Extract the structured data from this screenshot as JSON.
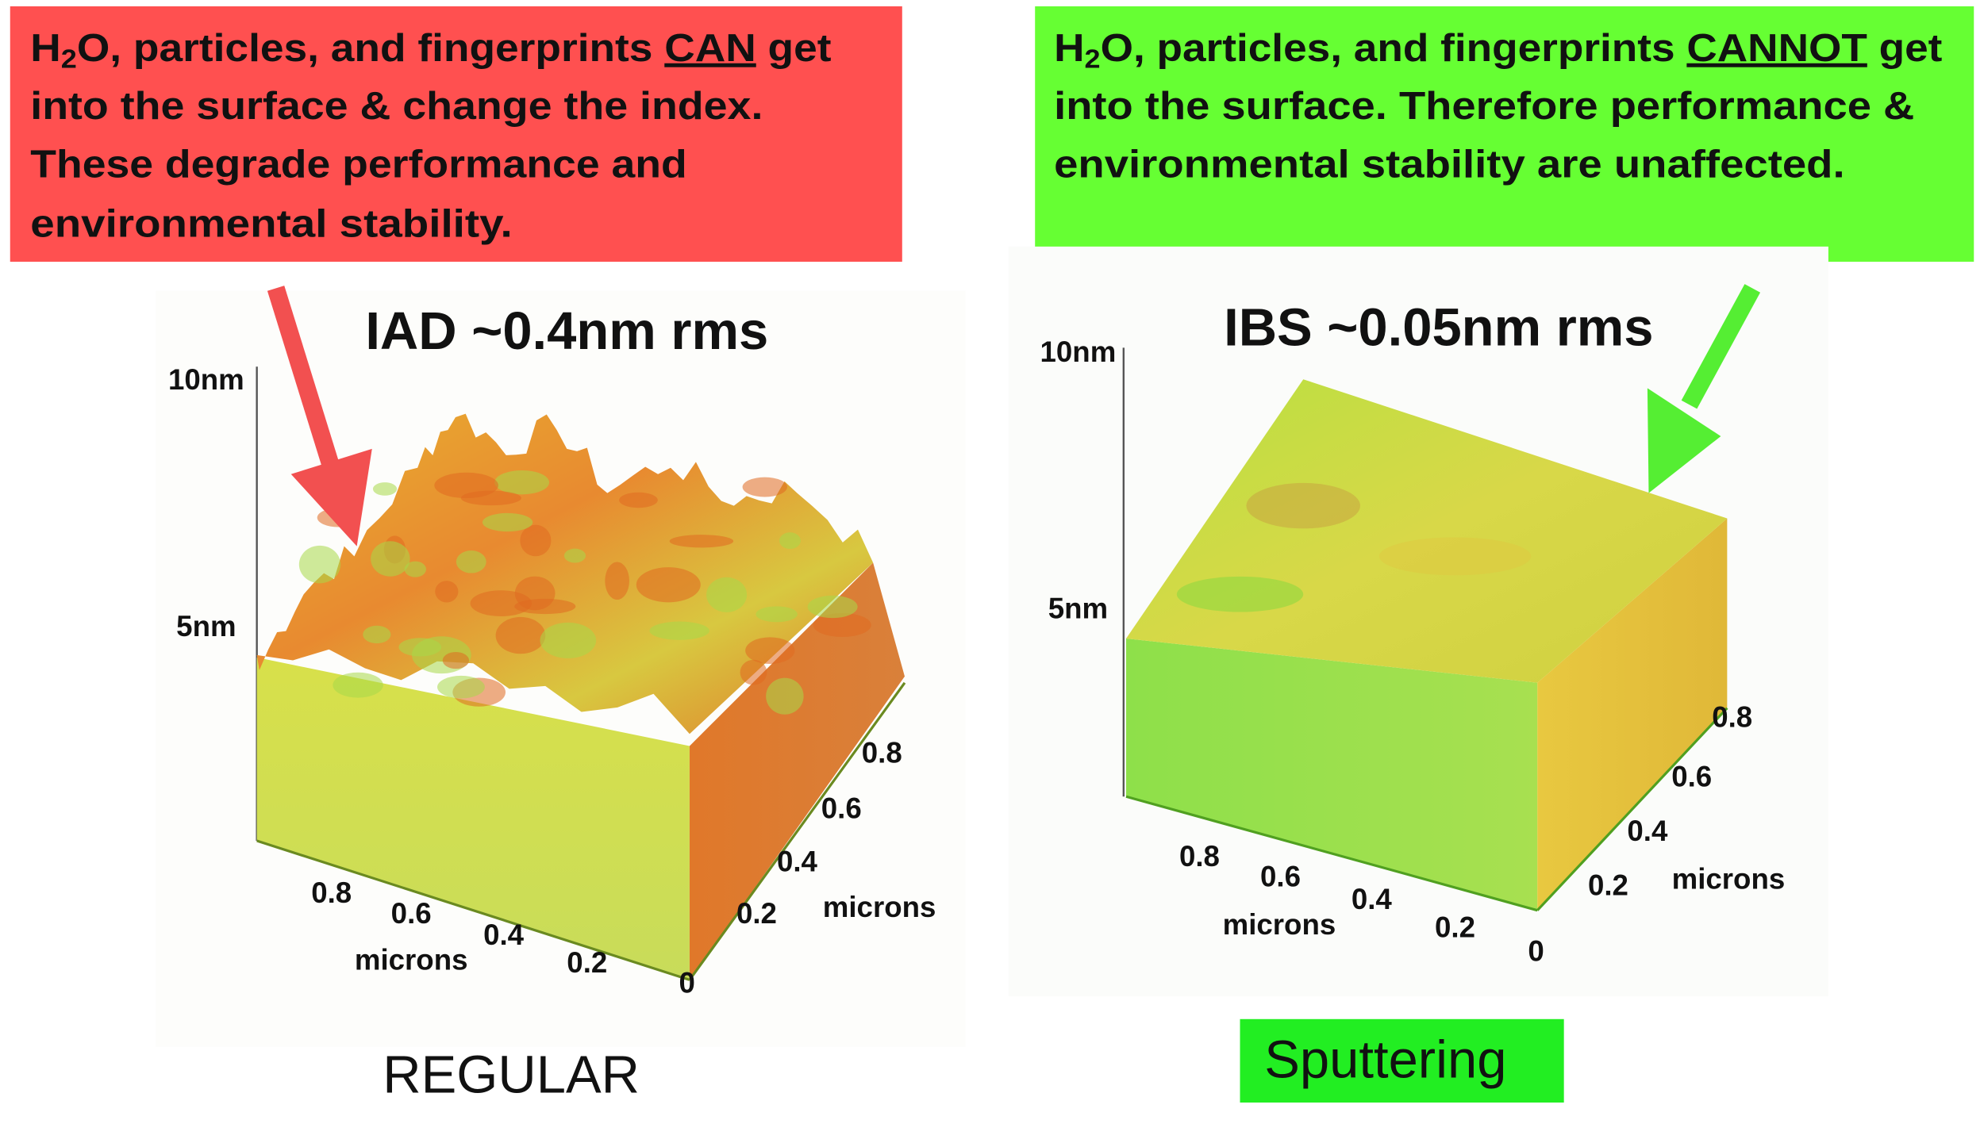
{
  "panels": [
    {
      "note": {
        "first_line": [
          "H",
          "2",
          "O, particles, and fingerprints ",
          "CAN",
          " get"
        ],
        "lines": [
          "into the surface & change the index.",
          "These degrade performance and",
          "environmental stability."
        ]
      },
      "title": "IAD ~0.4nm rms",
      "z_labels": [
        "10nm",
        "5nm"
      ],
      "front_ticks": [
        "0.8",
        "0.6",
        "0.4",
        "0.2"
      ],
      "front_axis_label": "microns",
      "origin_label": "0",
      "side_ticks": [
        "0.2",
        "0.4",
        "0.6",
        "0.8"
      ],
      "side_axis_label": "microns",
      "caption": "REGULAR"
    },
    {
      "note": {
        "first_line": [
          "H",
          "2",
          "O, particles, and fingerprints ",
          "CANNOT",
          " get"
        ],
        "lines": [
          "into the surface. Therefore performance &",
          "environmental stability are unaffected."
        ]
      },
      "title": "IBS ~0.05nm rms",
      "z_labels": [
        "10nm",
        "5nm"
      ],
      "front_ticks": [
        "0.8",
        "0.6",
        "0.4",
        "0.2"
      ],
      "front_axis_label": "microns",
      "origin_label": "0",
      "side_ticks": [
        "0.2",
        "0.4",
        "0.6",
        "0.8"
      ],
      "side_axis_label": "microns",
      "caption": "Sputtering"
    }
  ]
}
